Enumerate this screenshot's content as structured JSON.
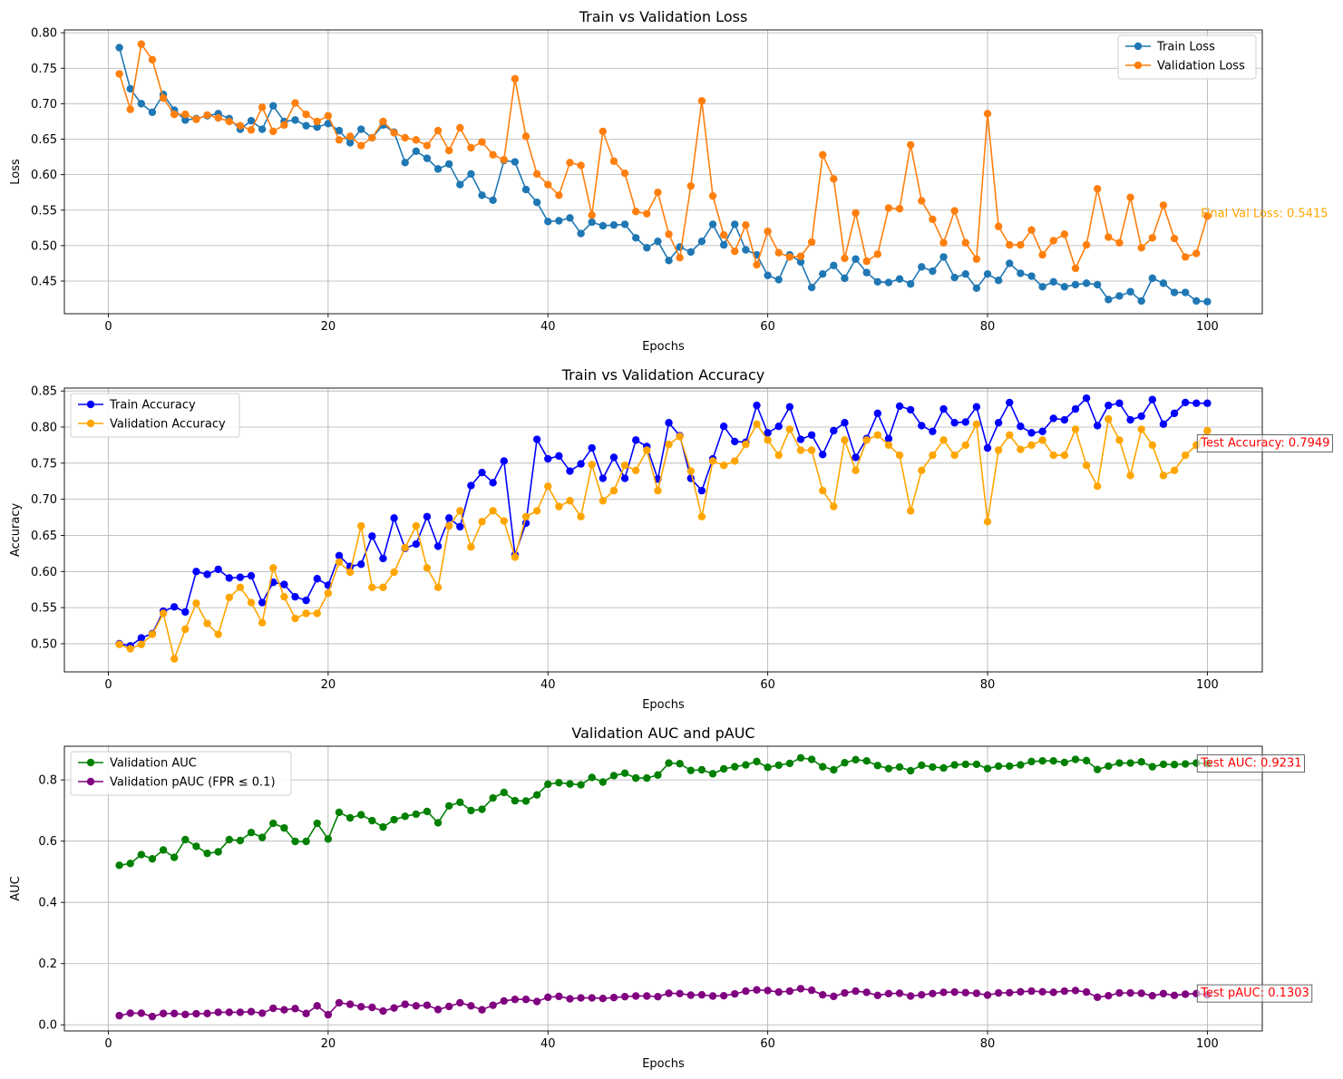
{
  "chart_data": [
    {
      "type": "line",
      "title": "Train vs Validation Loss",
      "xlabel": "Epochs",
      "ylabel": "Loss",
      "xlim": [
        -4,
        105
      ],
      "ylim": [
        0.404,
        0.804
      ],
      "xticks": [
        0,
        20,
        40,
        60,
        80,
        100
      ],
      "yticks": [
        0.45,
        0.5,
        0.55,
        0.6,
        0.65,
        0.7,
        0.75,
        0.8
      ],
      "ytick_labels": [
        "0.45",
        "0.50",
        "0.55",
        "0.60",
        "0.65",
        "0.70",
        "0.75",
        "0.80"
      ],
      "xtick_labels": [
        "0",
        "20",
        "40",
        "60",
        "80",
        "100"
      ],
      "grid": true,
      "legend_position": "top-right",
      "x": [
        1,
        2,
        3,
        4,
        5,
        6,
        7,
        8,
        9,
        10,
        11,
        12,
        13,
        14,
        15,
        16,
        17,
        18,
        19,
        20,
        21,
        22,
        23,
        24,
        25,
        26,
        27,
        28,
        29,
        30,
        31,
        32,
        33,
        34,
        35,
        36,
        37,
        38,
        39,
        40,
        41,
        42,
        43,
        44,
        45,
        46,
        47,
        48,
        49,
        50,
        51,
        52,
        53,
        54,
        55,
        56,
        57,
        58,
        59,
        60,
        61,
        62,
        63,
        64,
        65,
        66,
        67,
        68,
        69,
        70,
        71,
        72,
        73,
        74,
        75,
        76,
        77,
        78,
        79,
        80,
        81,
        82,
        83,
        84,
        85,
        86,
        87,
        88,
        89,
        90,
        91,
        92,
        93,
        94,
        95,
        96,
        97,
        98,
        99,
        100
      ],
      "series": [
        {
          "name": "Train Loss",
          "color": "#1f77b4",
          "values": [
            0.779,
            0.721,
            0.7,
            0.688,
            0.713,
            0.691,
            0.677,
            0.679,
            0.683,
            0.686,
            0.679,
            0.664,
            0.676,
            0.664,
            0.697,
            0.675,
            0.677,
            0.669,
            0.667,
            0.672,
            0.662,
            0.645,
            0.664,
            0.652,
            0.67,
            0.66,
            0.617,
            0.633,
            0.623,
            0.608,
            0.615,
            0.586,
            0.601,
            0.571,
            0.564,
            0.62,
            0.618,
            0.579,
            0.561,
            0.534,
            0.535,
            0.539,
            0.517,
            0.533,
            0.528,
            0.529,
            0.53,
            0.511,
            0.497,
            0.506,
            0.479,
            0.498,
            0.491,
            0.506,
            0.53,
            0.501,
            0.53,
            0.494,
            0.487,
            0.458,
            0.452,
            0.487,
            0.477,
            0.441,
            0.46,
            0.472,
            0.454,
            0.481,
            0.462,
            0.449,
            0.448,
            0.453,
            0.446,
            0.47,
            0.464,
            0.484,
            0.455,
            0.46,
            0.44,
            0.46,
            0.451,
            0.475,
            0.461,
            0.457,
            0.442,
            0.449,
            0.442,
            0.445,
            0.447,
            0.445,
            0.424,
            0.429,
            0.435,
            0.422,
            0.454,
            0.447,
            0.434,
            0.434,
            0.422,
            0.421
          ]
        },
        {
          "name": "Validation Loss",
          "color": "#ff7f0e",
          "values": [
            0.742,
            0.692,
            0.784,
            0.762,
            0.708,
            0.685,
            0.685,
            0.678,
            0.684,
            0.68,
            0.675,
            0.669,
            0.663,
            0.695,
            0.661,
            0.67,
            0.701,
            0.685,
            0.675,
            0.683,
            0.649,
            0.654,
            0.641,
            0.652,
            0.675,
            0.659,
            0.652,
            0.649,
            0.641,
            0.662,
            0.634,
            0.666,
            0.638,
            0.646,
            0.628,
            0.621,
            0.735,
            0.654,
            0.601,
            0.586,
            0.571,
            0.617,
            0.613,
            0.543,
            0.661,
            0.619,
            0.602,
            0.548,
            0.545,
            0.575,
            0.516,
            0.483,
            0.584,
            0.704,
            0.57,
            0.515,
            0.492,
            0.529,
            0.473,
            0.52,
            0.49,
            0.484,
            0.485,
            0.505,
            0.628,
            0.594,
            0.482,
            0.546,
            0.478,
            0.488,
            0.553,
            0.552,
            0.642,
            0.563,
            0.537,
            0.504,
            0.549,
            0.504,
            0.481,
            0.686,
            0.527,
            0.501,
            0.501,
            0.522,
            0.487,
            0.507,
            0.516,
            0.468,
            0.501,
            0.58,
            0.512,
            0.504,
            0.568,
            0.497,
            0.511,
            0.557,
            0.51,
            0.484,
            0.489,
            0.5415
          ]
        }
      ],
      "annotations": [
        {
          "text": "Final Val Loss: 0.5415",
          "x": 99,
          "y": 0.5465,
          "color": "#ffa500",
          "boxed": false
        }
      ]
    },
    {
      "type": "line",
      "title": "Train vs Validation Accuracy",
      "xlabel": "Epochs",
      "ylabel": "Accuracy",
      "xlim": [
        -4,
        105
      ],
      "ylim": [
        0.461,
        0.854
      ],
      "xticks": [
        0,
        20,
        40,
        60,
        80,
        100
      ],
      "yticks": [
        0.5,
        0.55,
        0.6,
        0.65,
        0.7,
        0.75,
        0.8,
        0.85
      ],
      "ytick_labels": [
        "0.50",
        "0.55",
        "0.60",
        "0.65",
        "0.70",
        "0.75",
        "0.80",
        "0.85"
      ],
      "xtick_labels": [
        "0",
        "20",
        "40",
        "60",
        "80",
        "100"
      ],
      "grid": true,
      "legend_position": "top-left",
      "x": [
        1,
        2,
        3,
        4,
        5,
        6,
        7,
        8,
        9,
        10,
        11,
        12,
        13,
        14,
        15,
        16,
        17,
        18,
        19,
        20,
        21,
        22,
        23,
        24,
        25,
        26,
        27,
        28,
        29,
        30,
        31,
        32,
        33,
        34,
        35,
        36,
        37,
        38,
        39,
        40,
        41,
        42,
        43,
        44,
        45,
        46,
        47,
        48,
        49,
        50,
        51,
        52,
        53,
        54,
        55,
        56,
        57,
        58,
        59,
        60,
        61,
        62,
        63,
        64,
        65,
        66,
        67,
        68,
        69,
        70,
        71,
        72,
        73,
        74,
        75,
        76,
        77,
        78,
        79,
        80,
        81,
        82,
        83,
        84,
        85,
        86,
        87,
        88,
        89,
        90,
        91,
        92,
        93,
        94,
        95,
        96,
        97,
        98,
        99,
        100
      ],
      "series": [
        {
          "name": "Train Accuracy",
          "color": "#0000ff",
          "values": [
            0.5,
            0.497,
            0.508,
            0.514,
            0.545,
            0.551,
            0.544,
            0.6,
            0.596,
            0.603,
            0.591,
            0.592,
            0.594,
            0.557,
            0.585,
            0.582,
            0.565,
            0.56,
            0.59,
            0.581,
            0.622,
            0.607,
            0.61,
            0.649,
            0.618,
            0.674,
            0.632,
            0.638,
            0.676,
            0.635,
            0.674,
            0.662,
            0.719,
            0.737,
            0.723,
            0.753,
            0.623,
            0.667,
            0.783,
            0.756,
            0.76,
            0.739,
            0.749,
            0.771,
            0.729,
            0.758,
            0.729,
            0.782,
            0.773,
            0.728,
            0.806,
            0.788,
            0.729,
            0.712,
            0.756,
            0.801,
            0.78,
            0.779,
            0.83,
            0.792,
            0.801,
            0.828,
            0.783,
            0.789,
            0.762,
            0.795,
            0.806,
            0.758,
            0.784,
            0.819,
            0.784,
            0.829,
            0.824,
            0.802,
            0.794,
            0.825,
            0.806,
            0.807,
            0.828,
            0.771,
            0.806,
            0.834,
            0.801,
            0.792,
            0.794,
            0.812,
            0.81,
            0.825,
            0.84,
            0.802,
            0.83,
            0.833,
            0.81,
            0.815,
            0.838,
            0.804,
            0.819,
            0.834,
            0.833,
            0.833
          ]
        },
        {
          "name": "Validation Accuracy",
          "color": "#ffa500",
          "values": [
            0.499,
            0.493,
            0.499,
            0.513,
            0.542,
            0.479,
            0.52,
            0.556,
            0.528,
            0.513,
            0.564,
            0.578,
            0.557,
            0.529,
            0.605,
            0.565,
            0.535,
            0.542,
            0.542,
            0.57,
            0.613,
            0.599,
            0.663,
            0.578,
            0.578,
            0.599,
            0.633,
            0.663,
            0.605,
            0.578,
            0.663,
            0.684,
            0.634,
            0.669,
            0.684,
            0.67,
            0.62,
            0.676,
            0.684,
            0.718,
            0.69,
            0.698,
            0.676,
            0.748,
            0.698,
            0.712,
            0.747,
            0.74,
            0.768,
            0.712,
            0.776,
            0.787,
            0.739,
            0.676,
            0.753,
            0.747,
            0.753,
            0.776,
            0.804,
            0.782,
            0.761,
            0.797,
            0.768,
            0.768,
            0.712,
            0.69,
            0.782,
            0.74,
            0.782,
            0.789,
            0.775,
            0.761,
            0.684,
            0.74,
            0.761,
            0.782,
            0.761,
            0.775,
            0.804,
            0.669,
            0.768,
            0.789,
            0.769,
            0.775,
            0.782,
            0.761,
            0.761,
            0.797,
            0.747,
            0.718,
            0.811,
            0.782,
            0.733,
            0.797,
            0.775,
            0.733,
            0.74,
            0.761,
            0.775,
            0.7949
          ]
        }
      ],
      "annotations": [
        {
          "text": "Test Accuracy: 0.7949",
          "x": 99,
          "y": 0.7794,
          "color": "#ff0000",
          "boxed": true
        }
      ]
    },
    {
      "type": "line",
      "title": "Validation AUC and pAUC",
      "xlabel": "Epochs",
      "ylabel": "AUC",
      "xlim": [
        -4,
        105
      ],
      "ylim": [
        -0.02,
        0.91
      ],
      "xticks": [
        0,
        20,
        40,
        60,
        80,
        100
      ],
      "yticks": [
        0.0,
        0.2,
        0.4,
        0.6,
        0.8
      ],
      "ytick_labels": [
        "0.0",
        "0.2",
        "0.4",
        "0.6",
        "0.8"
      ],
      "xtick_labels": [
        "0",
        "20",
        "40",
        "60",
        "80",
        "100"
      ],
      "grid": true,
      "legend_position": "top-left",
      "x": [
        1,
        2,
        3,
        4,
        5,
        6,
        7,
        8,
        9,
        10,
        11,
        12,
        13,
        14,
        15,
        16,
        17,
        18,
        19,
        20,
        21,
        22,
        23,
        24,
        25,
        26,
        27,
        28,
        29,
        30,
        31,
        32,
        33,
        34,
        35,
        36,
        37,
        38,
        39,
        40,
        41,
        42,
        43,
        44,
        45,
        46,
        47,
        48,
        49,
        50,
        51,
        52,
        53,
        54,
        55,
        56,
        57,
        58,
        59,
        60,
        61,
        62,
        63,
        64,
        65,
        66,
        67,
        68,
        69,
        70,
        71,
        72,
        73,
        74,
        75,
        76,
        77,
        78,
        79,
        80,
        81,
        82,
        83,
        84,
        85,
        86,
        87,
        88,
        89,
        90,
        91,
        92,
        93,
        94,
        95,
        96,
        97,
        98,
        99,
        100
      ],
      "series": [
        {
          "name": "Validation AUC",
          "color": "#008000",
          "values": [
            0.521,
            0.527,
            0.556,
            0.542,
            0.571,
            0.547,
            0.605,
            0.583,
            0.56,
            0.565,
            0.605,
            0.602,
            0.628,
            0.612,
            0.658,
            0.643,
            0.599,
            0.599,
            0.658,
            0.607,
            0.694,
            0.676,
            0.686,
            0.667,
            0.646,
            0.67,
            0.681,
            0.688,
            0.697,
            0.66,
            0.715,
            0.727,
            0.7,
            0.704,
            0.741,
            0.759,
            0.732,
            0.731,
            0.751,
            0.786,
            0.791,
            0.787,
            0.784,
            0.808,
            0.793,
            0.814,
            0.822,
            0.806,
            0.806,
            0.816,
            0.855,
            0.853,
            0.831,
            0.833,
            0.82,
            0.836,
            0.843,
            0.849,
            0.86,
            0.841,
            0.848,
            0.854,
            0.872,
            0.867,
            0.843,
            0.833,
            0.856,
            0.866,
            0.862,
            0.847,
            0.837,
            0.842,
            0.83,
            0.848,
            0.842,
            0.839,
            0.849,
            0.851,
            0.851,
            0.837,
            0.845,
            0.845,
            0.849,
            0.86,
            0.862,
            0.862,
            0.857,
            0.867,
            0.863,
            0.834,
            0.845,
            0.855,
            0.855,
            0.859,
            0.843,
            0.851,
            0.85,
            0.852,
            0.855,
            0.853
          ]
        },
        {
          "name": "Validation pAUC (FPR ≤ 0.1)",
          "color": "#800080",
          "values": [
            0.03,
            0.038,
            0.038,
            0.027,
            0.037,
            0.037,
            0.034,
            0.036,
            0.037,
            0.041,
            0.041,
            0.041,
            0.043,
            0.038,
            0.054,
            0.049,
            0.053,
            0.037,
            0.062,
            0.033,
            0.072,
            0.067,
            0.059,
            0.057,
            0.045,
            0.055,
            0.067,
            0.062,
            0.064,
            0.05,
            0.06,
            0.072,
            0.062,
            0.049,
            0.064,
            0.078,
            0.083,
            0.083,
            0.076,
            0.09,
            0.093,
            0.085,
            0.088,
            0.088,
            0.086,
            0.089,
            0.092,
            0.094,
            0.094,
            0.092,
            0.103,
            0.102,
            0.097,
            0.098,
            0.094,
            0.095,
            0.101,
            0.11,
            0.114,
            0.112,
            0.107,
            0.11,
            0.118,
            0.113,
            0.098,
            0.093,
            0.104,
            0.11,
            0.106,
            0.096,
            0.102,
            0.103,
            0.094,
            0.098,
            0.102,
            0.106,
            0.107,
            0.105,
            0.103,
            0.097,
            0.104,
            0.105,
            0.108,
            0.11,
            0.108,
            0.106,
            0.11,
            0.112,
            0.107,
            0.09,
            0.095,
            0.104,
            0.104,
            0.103,
            0.095,
            0.102,
            0.096,
            0.1,
            0.102,
            0.098
          ]
        }
      ],
      "annotations": [
        {
          "text": "Test AUC: 0.9231",
          "x": 99,
          "y": 0.858,
          "color": "#ff0000",
          "boxed": true
        },
        {
          "text": "Test pAUC: 0.1303",
          "x": 99,
          "y": 0.107,
          "color": "#ff0000",
          "boxed": true
        }
      ]
    }
  ]
}
